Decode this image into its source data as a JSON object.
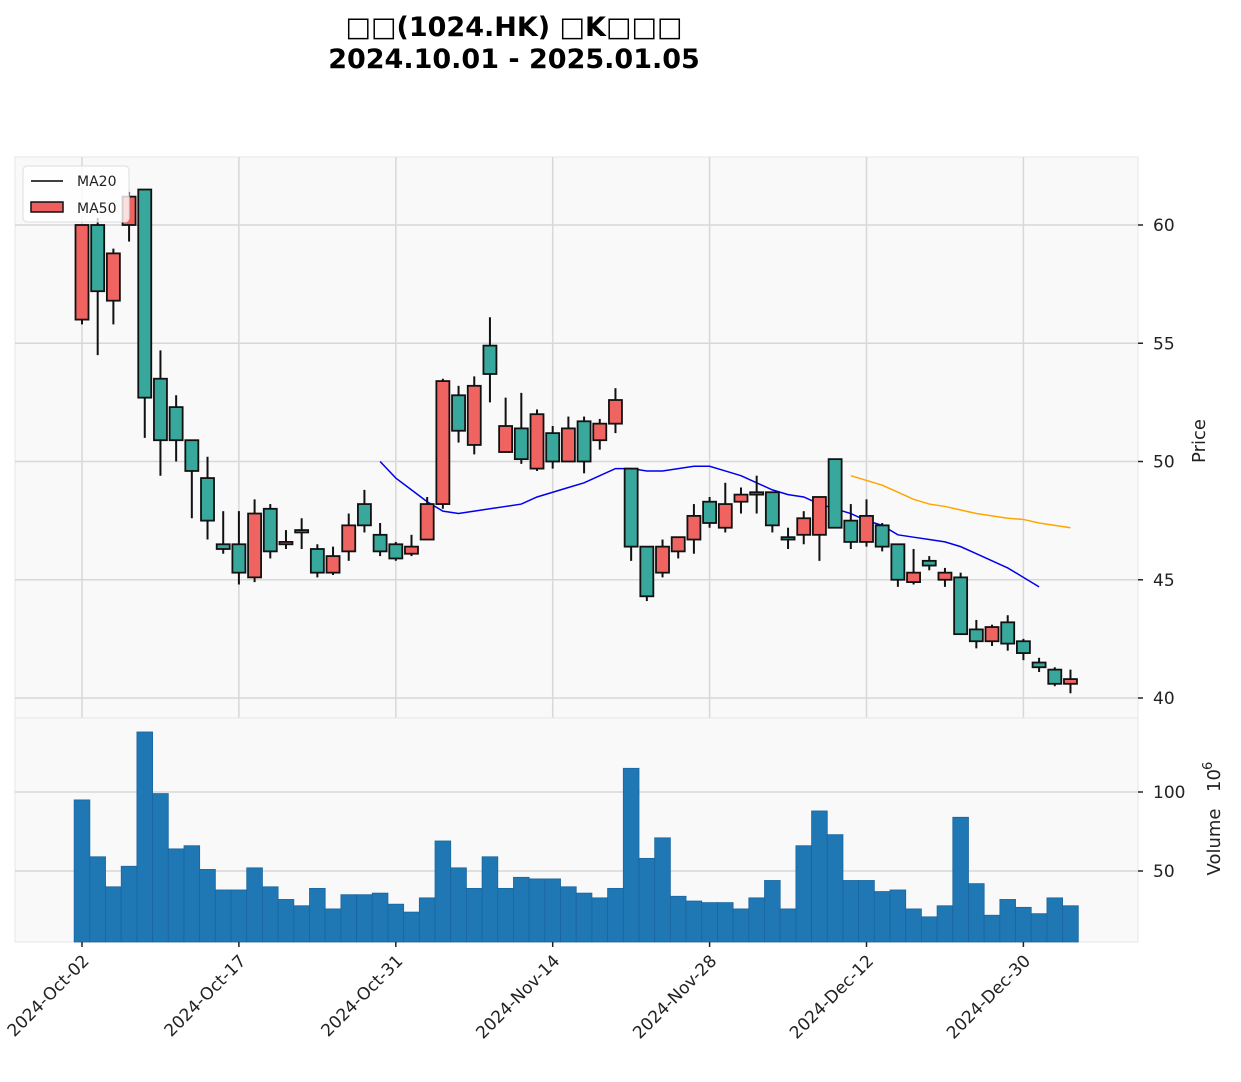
{
  "title": {
    "line1": "□□(1024.HK) □K□□□",
    "line2": "2024.10.01 - 2025.01.05"
  },
  "legend": [
    {
      "label": "MA20",
      "style": "line",
      "color": "#000000"
    },
    {
      "label": "MA50",
      "style": "patch",
      "color": "#ef5f5f"
    }
  ],
  "colors": {
    "up": "#ef6461",
    "down": "#38a89d",
    "volume": "#1f77b4",
    "ma_blue": "#0000ee",
    "ma_orange": "#ffa500",
    "grid": "#d8d8d8",
    "panel_bg": "#f9f9f9"
  },
  "axes": {
    "price_label": "Price",
    "volume_label": "Volume",
    "volume_exponent": "10",
    "volume_exponent_power": "6",
    "price_ticks": [
      "40",
      "45",
      "50",
      "55",
      "60"
    ],
    "volume_ticks": [
      "50",
      "100"
    ],
    "x_ticks": [
      "2024-Oct-02",
      "2024-Oct-17",
      "2024-Oct-31",
      "2024-Nov-14",
      "2024-Nov-28",
      "2024-Dec-12",
      "2024-Dec-30"
    ]
  },
  "chart_data": [
    {
      "type": "candlestick",
      "title": "□□(1024.HK) □K□□□ 2024.10.01 - 2025.01.05",
      "ylabel": "Price",
      "ylim": [
        38.8,
        62.8
      ],
      "x_tick_labels": [
        "2024-Oct-02",
        "2024-Oct-17",
        "2024-Oct-31",
        "2024-Nov-14",
        "2024-Nov-28",
        "2024-Dec-12",
        "2024-Dec-30"
      ],
      "x_tick_indices": [
        0,
        10,
        20,
        30,
        40,
        50,
        60
      ],
      "legend": [
        "MA20",
        "MA50"
      ],
      "ohlc": [
        [
          56.0,
          60.0,
          55.8,
          60.0
        ],
        [
          60.0,
          60.3,
          54.5,
          57.2
        ],
        [
          56.8,
          59.0,
          55.8,
          58.8
        ],
        [
          60.0,
          61.4,
          59.3,
          61.2
        ],
        [
          61.5,
          61.5,
          51.0,
          52.7
        ],
        [
          53.5,
          54.7,
          49.4,
          50.9
        ],
        [
          52.3,
          52.8,
          50.0,
          50.9
        ],
        [
          50.9,
          50.9,
          47.6,
          49.6
        ],
        [
          49.3,
          50.2,
          46.7,
          47.5
        ],
        [
          46.5,
          47.9,
          46.1,
          46.3
        ],
        [
          46.5,
          47.9,
          44.8,
          45.3
        ],
        [
          45.1,
          48.4,
          44.9,
          47.8
        ],
        [
          48.0,
          48.2,
          45.9,
          46.2
        ],
        [
          46.5,
          47.1,
          46.3,
          46.6
        ],
        [
          47.1,
          47.6,
          46.3,
          47.0
        ],
        [
          46.3,
          46.5,
          45.1,
          45.3
        ],
        [
          45.3,
          46.4,
          45.2,
          46.0
        ],
        [
          46.2,
          47.8,
          45.8,
          47.3
        ],
        [
          48.2,
          48.8,
          47.0,
          47.3
        ],
        [
          46.9,
          47.4,
          46.0,
          46.2
        ],
        [
          46.5,
          46.6,
          45.8,
          45.9
        ],
        [
          46.1,
          46.9,
          46.0,
          46.4
        ],
        [
          46.7,
          48.5,
          46.7,
          48.2
        ],
        [
          48.2,
          53.5,
          48.0,
          53.4
        ],
        [
          52.8,
          53.2,
          50.8,
          51.3
        ],
        [
          50.7,
          53.6,
          50.3,
          53.2
        ],
        [
          54.9,
          56.1,
          52.5,
          53.7
        ],
        [
          50.4,
          52.7,
          50.4,
          51.5
        ],
        [
          51.4,
          52.9,
          49.9,
          50.1
        ],
        [
          49.7,
          52.2,
          49.6,
          52.0
        ],
        [
          51.2,
          51.5,
          49.7,
          50.0
        ],
        [
          50.0,
          51.9,
          50.0,
          51.4
        ],
        [
          51.7,
          51.9,
          49.5,
          50.0
        ],
        [
          50.9,
          51.8,
          50.5,
          51.6
        ],
        [
          51.6,
          53.1,
          51.2,
          52.6
        ],
        [
          49.7,
          49.7,
          45.8,
          46.4
        ],
        [
          46.4,
          46.4,
          44.1,
          44.3
        ],
        [
          45.3,
          46.7,
          45.1,
          46.4
        ],
        [
          46.2,
          46.8,
          45.9,
          46.8
        ],
        [
          46.7,
          48.2,
          46.1,
          47.7
        ],
        [
          48.3,
          48.5,
          47.2,
          47.4
        ],
        [
          47.2,
          49.1,
          47.0,
          48.2
        ],
        [
          48.3,
          48.9,
          47.8,
          48.6
        ],
        [
          48.7,
          49.4,
          47.8,
          48.6
        ],
        [
          48.7,
          48.7,
          47.0,
          47.3
        ],
        [
          46.8,
          47.2,
          46.3,
          46.7
        ],
        [
          46.9,
          47.9,
          46.5,
          47.6
        ],
        [
          46.9,
          48.5,
          45.8,
          48.5
        ],
        [
          50.1,
          50.1,
          47.2,
          47.2
        ],
        [
          47.5,
          48.2,
          46.3,
          46.6
        ],
        [
          46.6,
          48.4,
          46.4,
          47.7
        ],
        [
          47.3,
          47.4,
          46.2,
          46.4
        ],
        [
          46.5,
          46.5,
          44.7,
          45.0
        ],
        [
          44.9,
          46.3,
          44.8,
          45.3
        ],
        [
          45.8,
          46.0,
          45.4,
          45.6
        ],
        [
          45.0,
          45.5,
          44.7,
          45.3
        ],
        [
          45.1,
          45.3,
          42.7,
          42.7
        ],
        [
          42.9,
          43.3,
          42.1,
          42.4
        ],
        [
          42.4,
          43.1,
          42.2,
          43.0
        ],
        [
          43.2,
          43.5,
          42.0,
          42.3
        ],
        [
          42.4,
          42.5,
          41.6,
          41.9
        ],
        [
          41.5,
          41.7,
          41.1,
          41.3
        ],
        [
          41.2,
          41.3,
          40.5,
          40.6
        ],
        [
          40.6,
          41.2,
          40.2,
          40.8
        ]
      ],
      "ohlc_order": [
        "open",
        "high",
        "low",
        "close"
      ],
      "ma_blue": {
        "start_index": 19,
        "values": [
          50.0,
          49.3,
          48.8,
          48.3,
          47.9,
          47.8,
          47.9,
          48.0,
          48.1,
          48.2,
          48.5,
          48.7,
          48.9,
          49.1,
          49.4,
          49.7,
          49.7,
          49.6,
          49.6,
          49.7,
          49.8,
          49.8,
          49.6,
          49.4,
          49.1,
          48.8,
          48.6,
          48.5,
          48.2,
          48.0,
          47.8,
          47.5,
          47.3,
          46.9,
          46.8,
          46.7,
          46.6,
          46.4,
          46.1,
          45.8,
          45.5,
          45.1,
          44.7
        ]
      },
      "ma_orange": {
        "start_index": 49,
        "values": [
          49.4,
          49.2,
          49.0,
          48.7,
          48.4,
          48.2,
          48.1,
          47.95,
          47.8,
          47.7,
          47.6,
          47.55,
          47.4,
          47.3,
          47.2
        ]
      }
    },
    {
      "type": "bar",
      "ylabel": "Volume (10^6)",
      "ylim": [
        5,
        140
      ],
      "values": [
        95,
        59,
        40,
        53,
        138,
        99,
        64,
        66,
        51,
        38,
        38,
        52,
        40,
        32,
        28,
        39,
        26,
        35,
        35,
        36,
        29,
        24,
        33,
        69,
        52,
        39,
        59,
        39,
        46,
        45,
        45,
        40,
        36,
        33,
        39,
        115,
        58,
        71,
        34,
        31,
        30,
        30,
        26,
        33,
        44,
        26,
        66,
        88,
        73,
        44,
        44,
        37,
        38,
        26,
        21,
        28,
        84,
        42,
        22,
        32,
        27,
        23,
        33,
        28
      ]
    }
  ]
}
